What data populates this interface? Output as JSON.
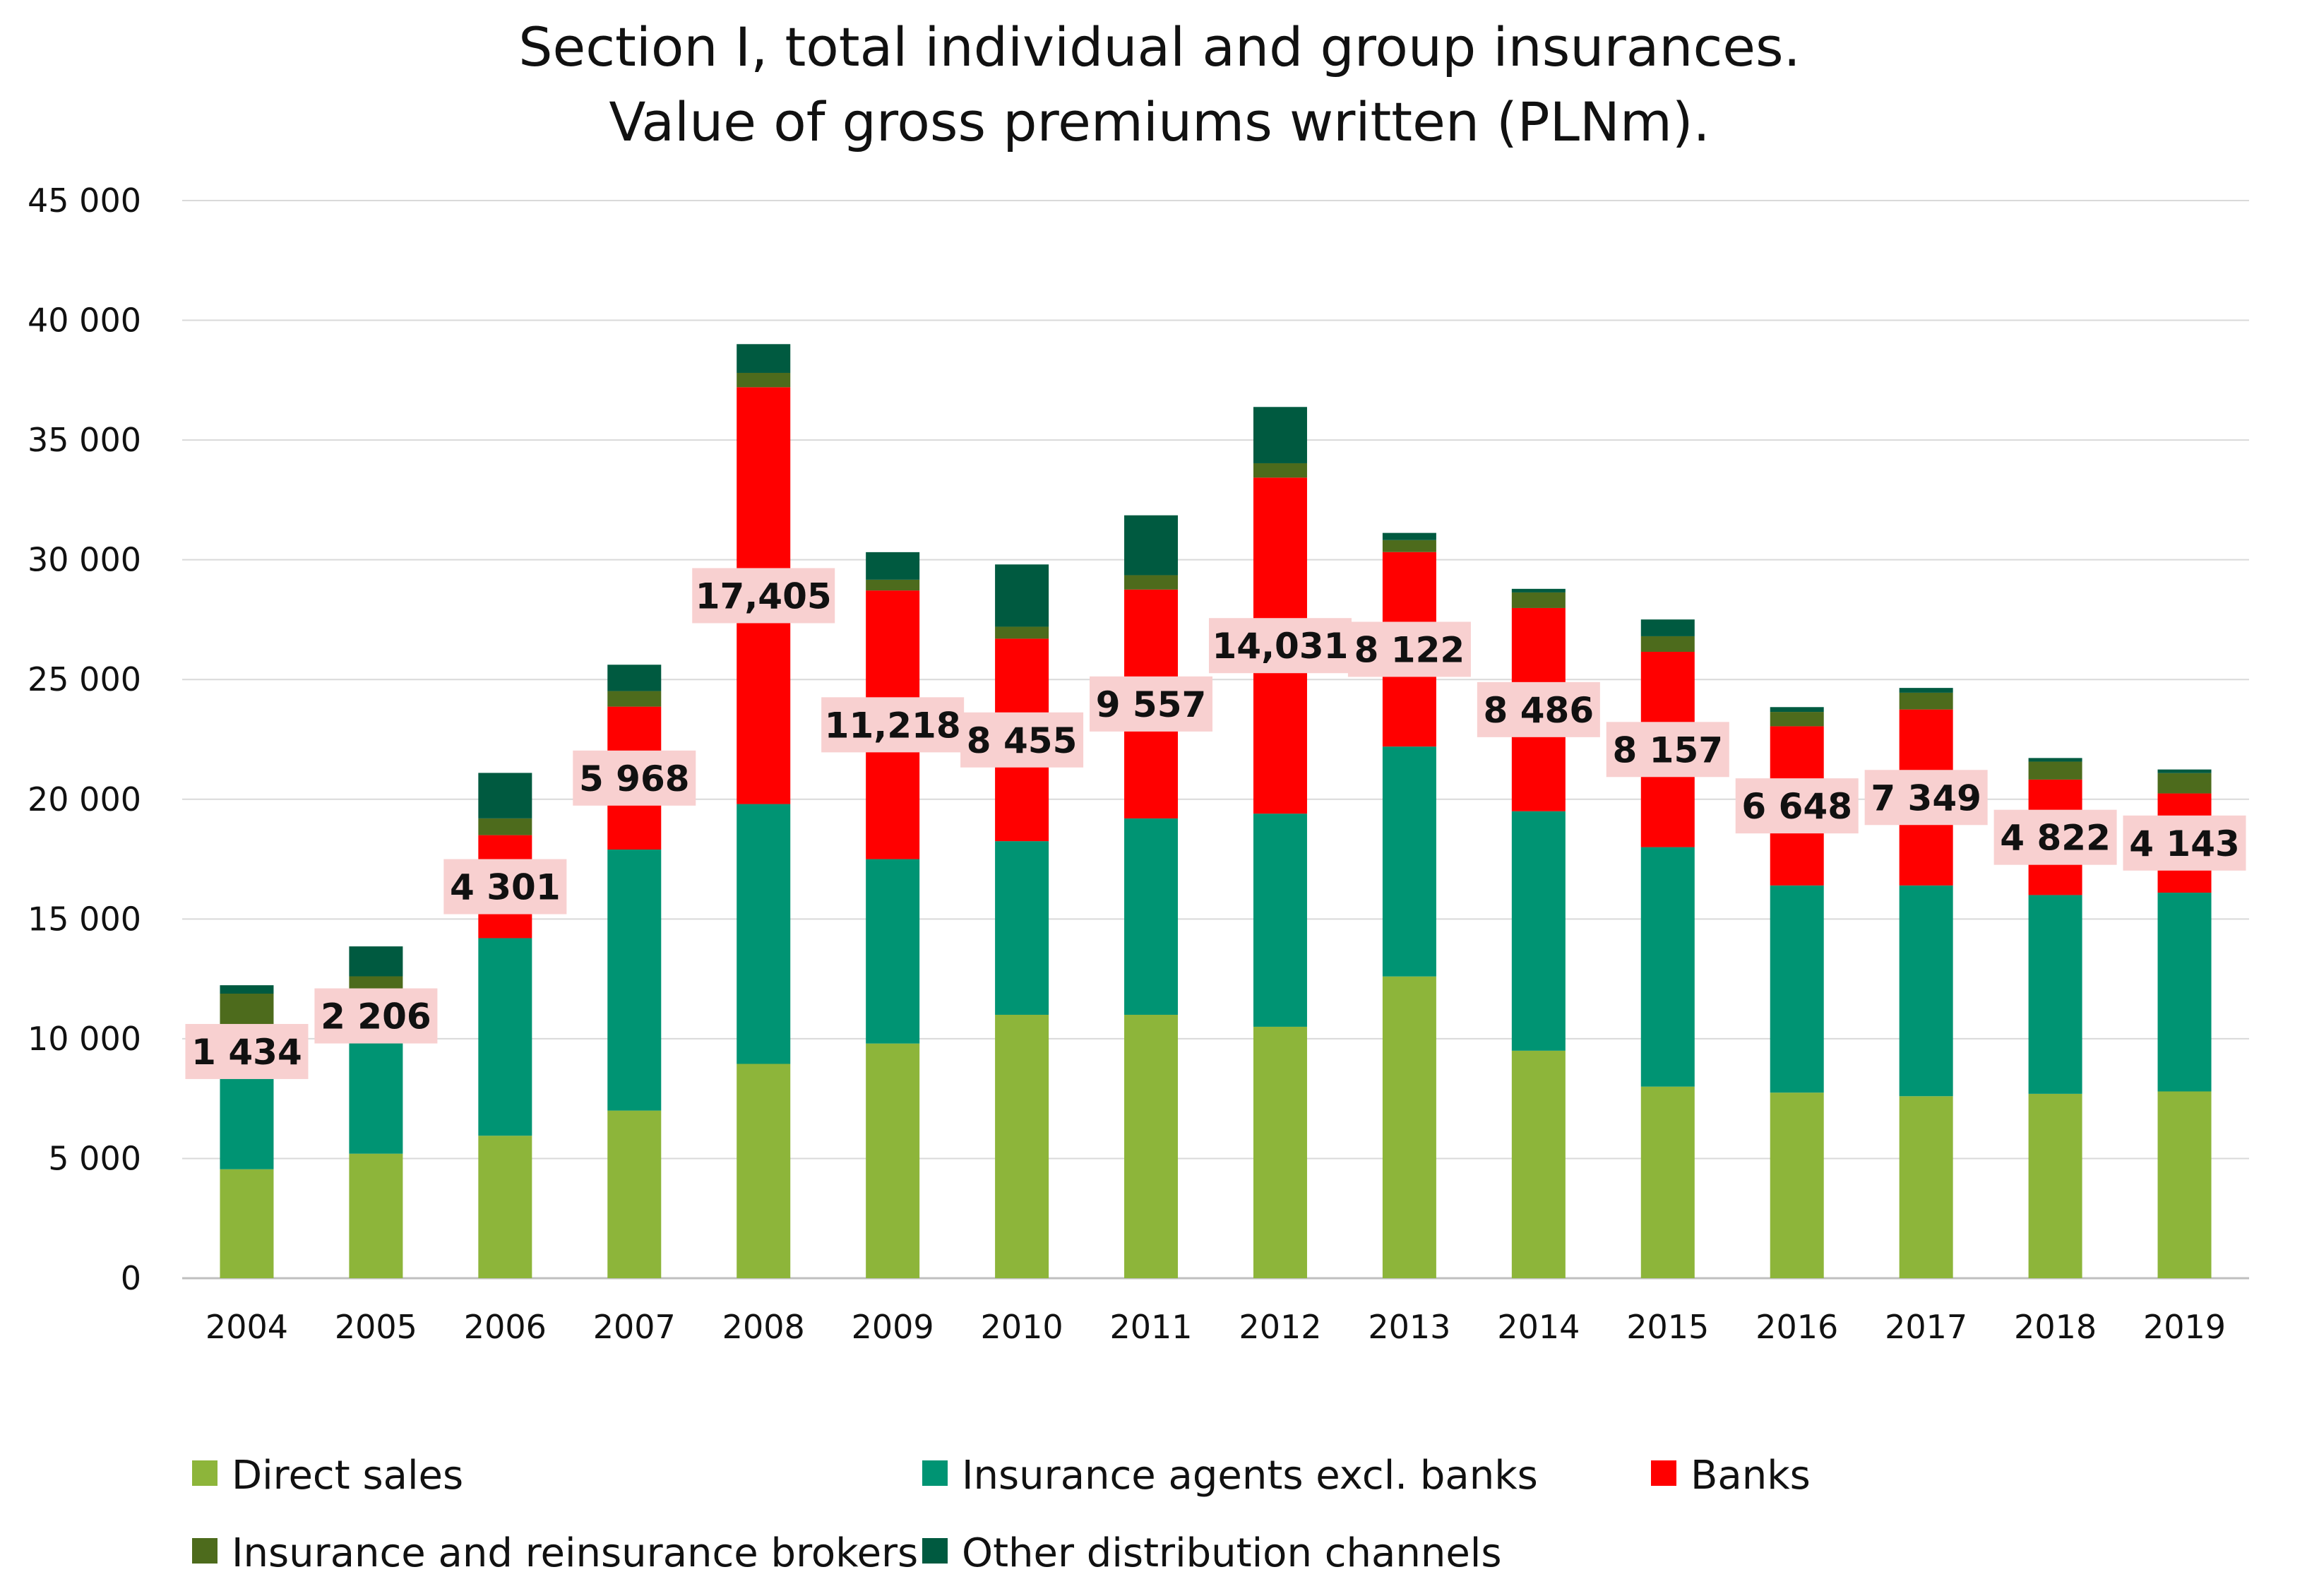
{
  "chart_data": {
    "type": "bar",
    "stacked": true,
    "title": "Section I, total individual and group insurances.",
    "subtitle": "Value of gross premiums written (PLNm).",
    "xlabel": "",
    "ylabel": "",
    "ylim": [
      0,
      45000
    ],
    "yticks": [
      0,
      5000,
      10000,
      15000,
      20000,
      25000,
      30000,
      35000,
      40000,
      45000
    ],
    "ytick_labels": [
      "0",
      "5 000",
      "10 000",
      "15 000",
      "20 000",
      "25 000",
      "30 000",
      "35 000",
      "40 000",
      "45 000"
    ],
    "grid": "horizontal",
    "legend_position": "bottom",
    "categories": [
      "2004",
      "2005",
      "2006",
      "2007",
      "2008",
      "2009",
      "2010",
      "2011",
      "2012",
      "2013",
      "2014",
      "2015",
      "2016",
      "2017",
      "2018",
      "2019"
    ],
    "series": [
      {
        "name": "Direct sales",
        "color": "#8DB53A",
        "values": [
          4550,
          5200,
          5950,
          7000,
          8950,
          9800,
          11000,
          11000,
          10500,
          12600,
          9500,
          8000,
          7750,
          7600,
          7700,
          7800
        ]
      },
      {
        "name": "Insurance agents excl. banks",
        "color": "#009473",
        "values": [
          4200,
          4650,
          8250,
          10900,
          10850,
          7700,
          7250,
          8200,
          8900,
          9600,
          10000,
          10000,
          8650,
          8800,
          8300,
          8300
        ]
      },
      {
        "name": "Banks",
        "color": "#FF0000",
        "values": [
          1434,
          2206,
          4301,
          5968,
          17405,
          11218,
          8455,
          9557,
          14031,
          8122,
          8486,
          8157,
          6648,
          7349,
          4822,
          4143
        ]
      },
      {
        "name": "Insurance and reinsurance brokers",
        "color": "#4D6B1C",
        "values": [
          1700,
          550,
          700,
          650,
          600,
          450,
          500,
          600,
          600,
          500,
          650,
          650,
          600,
          700,
          750,
          850
        ]
      },
      {
        "name": "Other distribution channels",
        "color": "#005A40",
        "values": [
          350,
          1250,
          1900,
          1100,
          1200,
          1150,
          2600,
          2500,
          2350,
          300,
          150,
          700,
          200,
          200,
          150,
          150
        ]
      }
    ],
    "data_labels": {
      "series": "Banks",
      "texts": [
        "1 434",
        "2 206",
        "4 301",
        "5 968",
        "17,405",
        "11,218",
        "8 455",
        "9 557",
        "14,031",
        "8 122",
        "8 486",
        "8 157",
        "6 648",
        "7 349",
        "4 822",
        "4 143"
      ],
      "box_color": "#F8D0D0"
    }
  }
}
